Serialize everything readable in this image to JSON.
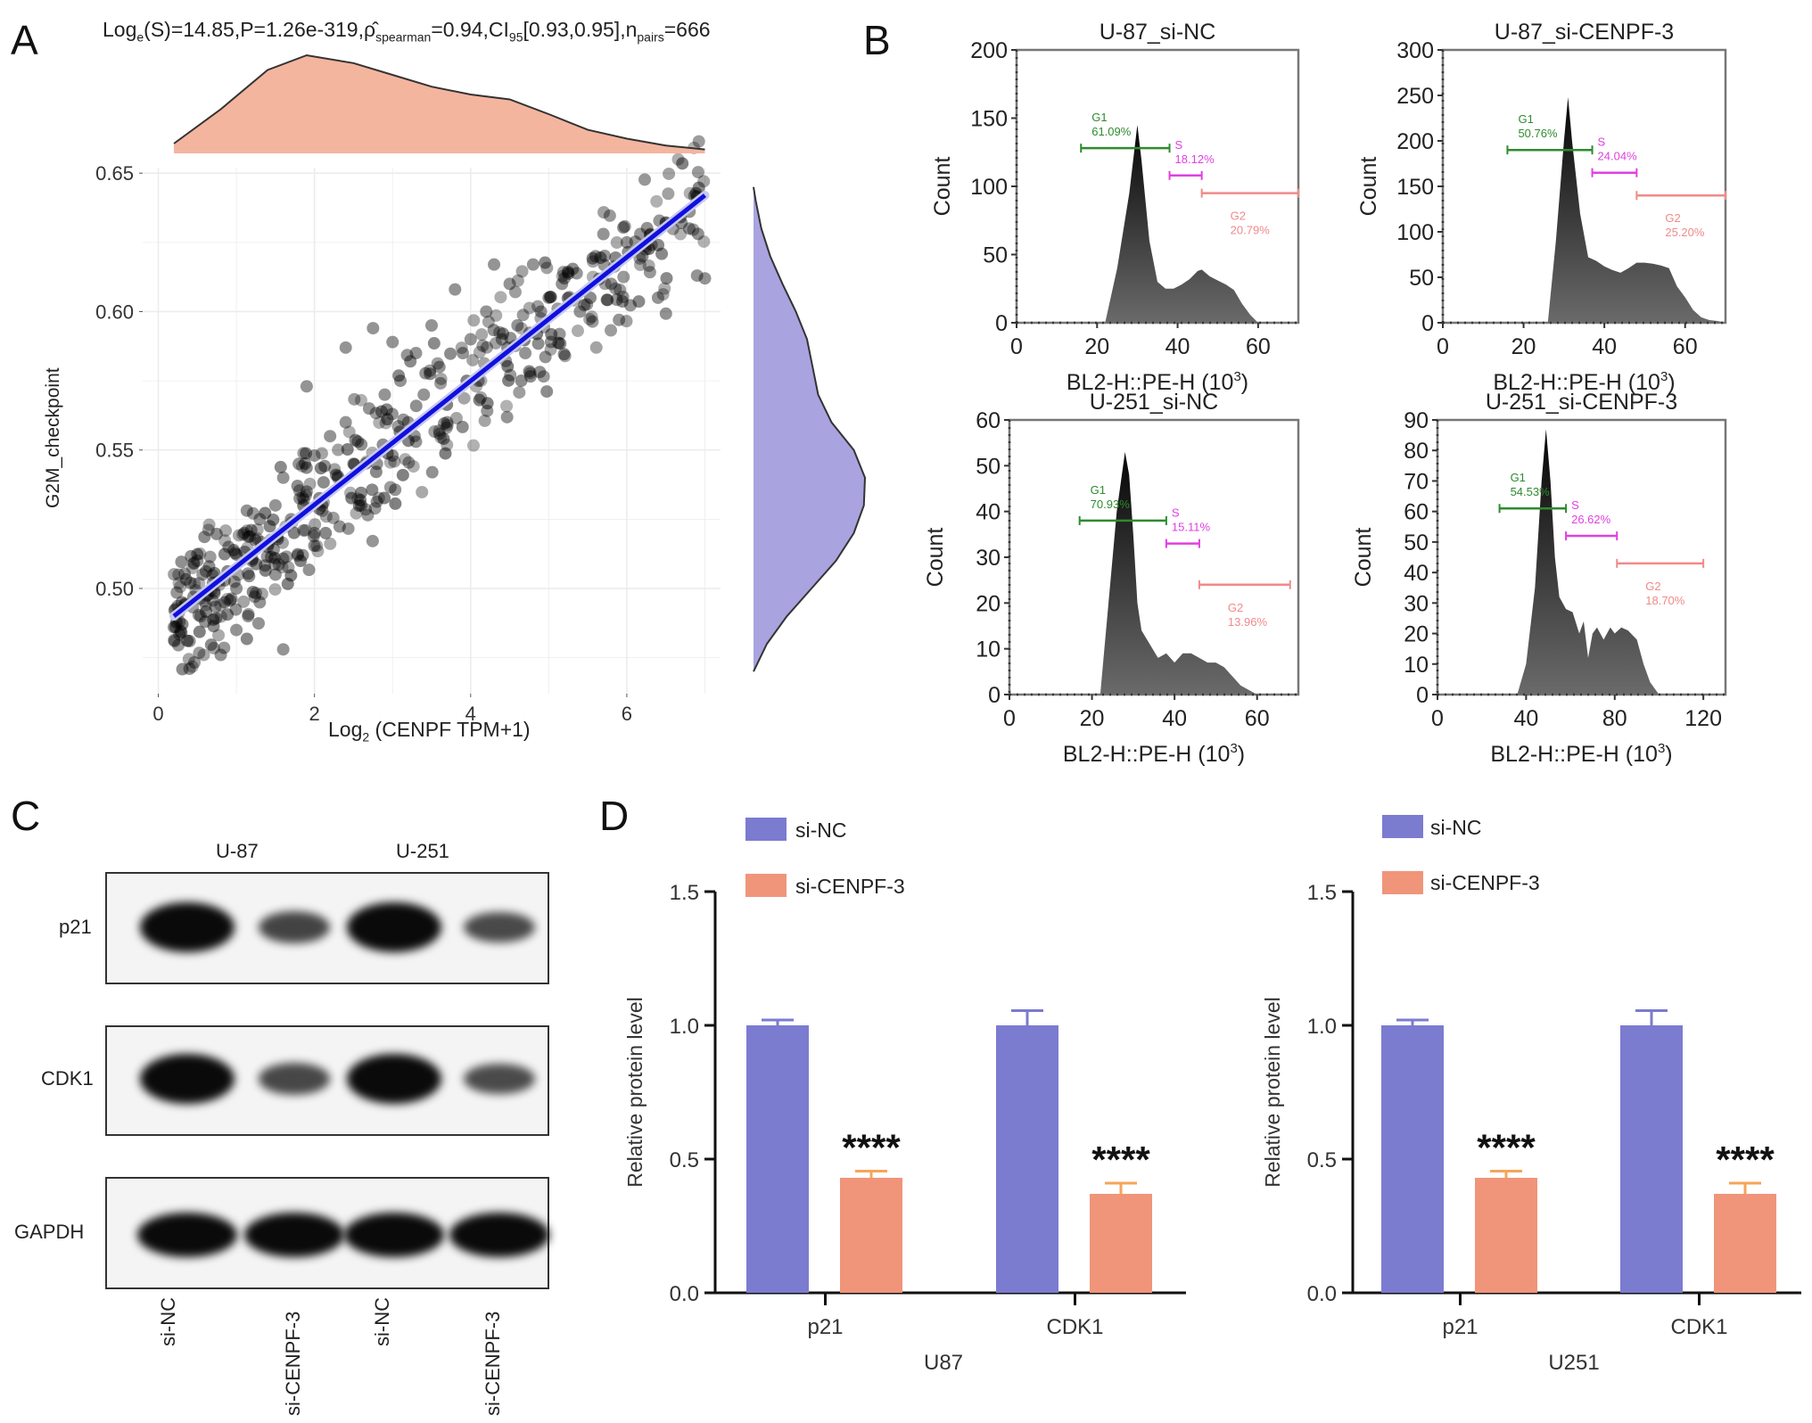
{
  "panels": {
    "A": {
      "letter": "A"
    },
    "B": {
      "letter": "B"
    },
    "C": {
      "letter": "C"
    },
    "D": {
      "letter": "D"
    }
  },
  "panelA": {
    "title_parts": {
      "s": "Log",
      "s_sub": "e",
      "s_rest": "(S)=14.85,P=1.26e-319,",
      "rho": "ρ̂",
      "rho_sub": "spearman",
      "rho_rest": "=0.94,CI",
      "ci_sub": "95",
      "ci_rest": "[0.93,0.95],n",
      "n_sub": "pairs",
      "n_rest": "=666"
    },
    "xlabel_main": "Log",
    "xlabel_sub": "2",
    "xlabel_rest": " (CENPF TPM+1)",
    "ylabel": "G2M_checkpoint"
  },
  "panelC": {
    "groups": [
      "U-87",
      "U-251"
    ],
    "rows": [
      "p21",
      "CDK1",
      "GAPDH"
    ],
    "lanes": [
      "si-NC",
      "si-CENPF-3",
      "si-NC",
      "si-CENPF-3"
    ],
    "band_intensity": {
      "p21": [
        1.0,
        0.45,
        1.0,
        0.4
      ],
      "CDK1": [
        1.0,
        0.42,
        1.0,
        0.38
      ],
      "GAPDH": [
        1.0,
        1.0,
        1.0,
        1.0
      ]
    }
  },
  "colors": {
    "si_nc": "#7b7bd0",
    "si_cenpf": "#f0957a",
    "density_top": "#f4b59f",
    "density_right": "#a9a3e0",
    "regression": "#1010e0",
    "g1": "#2e8b2e",
    "s": "#e040e0",
    "g2": "#f08a8a"
  },
  "chart_data": [
    {
      "id": "scatter",
      "type": "scatter",
      "title": "Loge(S)=14.85, P=1.26e-319, rho_spearman=0.94, CI95[0.93,0.95], n_pairs=666",
      "xlabel": "Log2 (CENPF TPM+1)",
      "ylabel": "G2M_checkpoint",
      "xlim": [
        -0.2,
        7.2
      ],
      "ylim": [
        0.462,
        0.652
      ],
      "xticks": [
        0,
        2,
        4,
        6
      ],
      "yticks": [
        0.5,
        0.55,
        0.6,
        0.65
      ],
      "ytick_labels": [
        "0.50",
        "0.55",
        "0.60",
        "0.65"
      ],
      "grid": true,
      "n_pairs": 666,
      "regression": {
        "x": [
          0.2,
          7.0
        ],
        "y": [
          0.49,
          0.642
        ]
      },
      "points": [
        [
          0.2,
          0.486
        ],
        [
          0.3,
          0.495
        ],
        [
          0.4,
          0.481
        ],
        [
          0.4,
          0.471
        ],
        [
          0.45,
          0.497
        ],
        [
          0.5,
          0.51
        ],
        [
          0.6,
          0.488
        ],
        [
          0.7,
          0.502
        ],
        [
          0.8,
          0.476
        ],
        [
          0.85,
          0.495
        ],
        [
          0.9,
          0.515
        ],
        [
          1.0,
          0.5
        ],
        [
          1.0,
          0.485
        ],
        [
          1.1,
          0.52
        ],
        [
          1.15,
          0.49
        ],
        [
          1.2,
          0.51
        ],
        [
          1.3,
          0.525
        ],
        [
          1.4,
          0.515
        ],
        [
          1.5,
          0.53
        ],
        [
          1.5,
          0.505
        ],
        [
          1.6,
          0.54
        ],
        [
          1.6,
          0.478
        ],
        [
          1.7,
          0.525
        ],
        [
          1.8,
          0.545
        ],
        [
          1.85,
          0.512
        ],
        [
          1.9,
          0.535
        ],
        [
          1.9,
          0.573
        ],
        [
          2.0,
          0.548
        ],
        [
          2.1,
          0.53
        ],
        [
          2.2,
          0.555
        ],
        [
          2.3,
          0.54
        ],
        [
          2.4,
          0.56
        ],
        [
          2.4,
          0.587
        ],
        [
          2.5,
          0.545
        ],
        [
          2.6,
          0.552
        ],
        [
          2.7,
          0.565
        ],
        [
          2.75,
          0.594
        ],
        [
          2.8,
          0.545
        ],
        [
          2.9,
          0.57
        ],
        [
          3.0,
          0.548
        ],
        [
          3.0,
          0.589
        ],
        [
          3.1,
          0.575
        ],
        [
          3.2,
          0.56
        ],
        [
          3.3,
          0.585
        ],
        [
          3.4,
          0.57
        ],
        [
          3.5,
          0.595
        ],
        [
          3.6,
          0.58
        ],
        [
          3.7,
          0.56
        ],
        [
          3.8,
          0.608
        ],
        [
          3.9,
          0.585
        ],
        [
          4.0,
          0.59
        ],
        [
          4.1,
          0.575
        ],
        [
          4.2,
          0.6
        ],
        [
          4.3,
          0.617
        ],
        [
          4.4,
          0.59
        ],
        [
          4.5,
          0.61
        ],
        [
          4.6,
          0.595
        ],
        [
          4.7,
          0.585
        ],
        [
          4.8,
          0.617
        ],
        [
          4.9,
          0.6
        ],
        [
          5.0,
          0.605
        ],
        [
          5.2,
          0.612
        ],
        [
          5.4,
          0.6
        ],
        [
          5.6,
          0.62
        ],
        [
          5.7,
          0.628
        ],
        [
          5.8,
          0.61
        ],
        [
          5.9,
          0.597
        ],
        [
          6.0,
          0.625
        ],
        [
          6.2,
          0.62
        ],
        [
          6.3,
          0.628
        ],
        [
          6.4,
          0.605
        ],
        [
          6.5,
          0.632
        ],
        [
          6.7,
          0.632
        ],
        [
          6.8,
          0.63
        ],
        [
          6.9,
          0.613
        ],
        [
          7.0,
          0.612
        ],
        [
          1.3,
          0.495
        ],
        [
          2.0,
          0.52
        ],
        [
          2.6,
          0.53
        ],
        [
          3.3,
          0.553
        ]
      ]
    },
    {
      "id": "density-top",
      "type": "area",
      "description": "Marginal density of Log2 (CENPF TPM+1)",
      "x": [
        0.2,
        0.8,
        1.4,
        1.9,
        2.5,
        3.0,
        3.5,
        4.0,
        4.5,
        5.0,
        5.5,
        6.0,
        6.5,
        7.0
      ],
      "density": [
        0.1,
        0.45,
        0.85,
        1.0,
        0.92,
        0.8,
        0.68,
        0.6,
        0.55,
        0.4,
        0.24,
        0.15,
        0.08,
        0.04
      ]
    },
    {
      "id": "density-right",
      "type": "area",
      "description": "Marginal density of G2M_checkpoint",
      "y": [
        0.47,
        0.48,
        0.49,
        0.5,
        0.51,
        0.52,
        0.53,
        0.54,
        0.55,
        0.56,
        0.57,
        0.58,
        0.59,
        0.6,
        0.61,
        0.62,
        0.63,
        0.64,
        0.645
      ],
      "density": [
        0.0,
        0.12,
        0.3,
        0.52,
        0.74,
        0.9,
        0.99,
        1.0,
        0.9,
        0.7,
        0.58,
        0.53,
        0.48,
        0.38,
        0.26,
        0.15,
        0.07,
        0.02,
        0.0
      ]
    },
    {
      "id": "flow-u87-sinc",
      "type": "area",
      "title": "U-87_si-NC",
      "xlabel": "BL2-H::PE-H (10^3)",
      "ylabel": "Count",
      "xlim": [
        0,
        70
      ],
      "ylim": [
        0,
        200
      ],
      "xticks": [
        0,
        20,
        40,
        60
      ],
      "yticks": [
        0,
        50,
        100,
        150,
        200
      ],
      "x": [
        22,
        25,
        28,
        30,
        31,
        33,
        35,
        37,
        39,
        41,
        43,
        45,
        46,
        48,
        50,
        52,
        54,
        56,
        58,
        60
      ],
      "y": [
        0,
        40,
        95,
        145,
        120,
        60,
        30,
        25,
        25,
        28,
        32,
        38,
        39,
        34,
        31,
        28,
        24,
        14,
        6,
        0
      ],
      "gates": [
        {
          "name": "G1",
          "pct": "61.09%",
          "range": [
            16,
            38
          ],
          "level": 128,
          "color": "#2e8b2e"
        },
        {
          "name": "S",
          "pct": "18.12%",
          "range": [
            38,
            46
          ],
          "level": 108,
          "color": "#e040e0"
        },
        {
          "name": "G2",
          "pct": "20.79%",
          "range": [
            46,
            70
          ],
          "level": 95,
          "color": "#f08a8a"
        }
      ]
    },
    {
      "id": "flow-u87-sicenpf",
      "type": "area",
      "title": "U-87_si-CENPF-3",
      "xlabel": "BL2-H::PE-H (10^3)",
      "ylabel": "Count",
      "xlim": [
        0,
        70
      ],
      "ylim": [
        0,
        300
      ],
      "xticks": [
        0,
        20,
        40,
        60
      ],
      "yticks": [
        0,
        50,
        100,
        150,
        200,
        250,
        300
      ],
      "x": [
        26,
        28,
        30,
        31,
        32,
        34,
        36,
        38,
        40,
        42,
        44,
        46,
        48,
        50,
        52,
        54,
        56,
        58,
        60,
        62,
        64,
        66,
        68,
        70
      ],
      "y": [
        0,
        90,
        200,
        248,
        200,
        120,
        72,
        68,
        62,
        58,
        55,
        60,
        66,
        66,
        65,
        63,
        60,
        40,
        28,
        14,
        6,
        3,
        2,
        0
      ],
      "gates": [
        {
          "name": "G1",
          "pct": "50.76%",
          "range": [
            16,
            37
          ],
          "level": 190,
          "color": "#2e8b2e"
        },
        {
          "name": "S",
          "pct": "24.04%",
          "range": [
            37,
            48
          ],
          "level": 165,
          "color": "#e040e0"
        },
        {
          "name": "G2",
          "pct": "25.20%",
          "range": [
            48,
            70
          ],
          "level": 140,
          "color": "#f08a8a"
        }
      ]
    },
    {
      "id": "flow-u251-sinc",
      "type": "area",
      "title": "U-251_si-NC",
      "xlabel": "BL2-H::PE-H (10^3)",
      "ylabel": "Count",
      "xlim": [
        0,
        70
      ],
      "ylim": [
        0,
        60
      ],
      "xticks": [
        0,
        20,
        40,
        60
      ],
      "yticks": [
        0,
        10,
        20,
        30,
        40,
        50,
        60
      ],
      "x": [
        22,
        24,
        26,
        28,
        29,
        30,
        31,
        32,
        34,
        36,
        38,
        40,
        42,
        44,
        46,
        48,
        50,
        52,
        54,
        56,
        58,
        60
      ],
      "y": [
        0,
        20,
        40,
        53,
        48,
        35,
        20,
        14,
        11,
        8,
        9,
        7,
        9,
        9,
        8,
        7,
        7,
        6,
        4,
        2,
        1,
        0
      ],
      "gates": [
        {
          "name": "G1",
          "pct": "70.93%",
          "range": [
            17,
            38
          ],
          "level": 38,
          "color": "#2e8b2e"
        },
        {
          "name": "S",
          "pct": "15.11%",
          "range": [
            38,
            46
          ],
          "level": 33,
          "color": "#e040e0"
        },
        {
          "name": "G2",
          "pct": "13.96%",
          "range": [
            46,
            68
          ],
          "level": 24,
          "color": "#f08a8a"
        }
      ]
    },
    {
      "id": "flow-u251-sicenpf",
      "type": "area",
      "title": "U-251_si-CENPF-3",
      "xlabel": "BL2-H::PE-H (10^3)",
      "ylabel": "Count",
      "xlim": [
        0,
        130
      ],
      "ylim": [
        0,
        90
      ],
      "xticks": [
        0,
        40,
        80,
        120
      ],
      "yticks": [
        0,
        10,
        20,
        30,
        40,
        50,
        60,
        70,
        80,
        90
      ],
      "x": [
        36,
        40,
        44,
        47,
        49,
        51,
        53,
        55,
        58,
        61,
        64,
        66,
        68,
        70,
        72,
        75,
        78,
        80,
        83,
        86,
        90,
        93,
        96,
        100
      ],
      "y": [
        0,
        10,
        35,
        70,
        87,
        70,
        45,
        32,
        28,
        27,
        20,
        24,
        12,
        20,
        22,
        18,
        22,
        20,
        22,
        21,
        18,
        10,
        4,
        0
      ],
      "gates": [
        {
          "name": "G1",
          "pct": "54.53%",
          "range": [
            28,
            58
          ],
          "level": 61,
          "color": "#2e8b2e"
        },
        {
          "name": "S",
          "pct": "26.62%",
          "range": [
            58,
            81
          ],
          "level": 52,
          "color": "#e040e0"
        },
        {
          "name": "G2",
          "pct": "18.70%",
          "range": [
            81,
            120
          ],
          "level": 43,
          "color": "#f08a8a"
        }
      ]
    },
    {
      "id": "bar-u87",
      "type": "bar",
      "xlabel": "U87",
      "ylabel": "Relative protein level",
      "ylim": [
        0,
        1.5
      ],
      "yticks": [
        0.0,
        0.5,
        1.0,
        1.5
      ],
      "ytick_labels": [
        "0.0",
        "0.5",
        "1.0",
        "1.5"
      ],
      "categories": [
        "p21",
        "CDK1"
      ],
      "series": [
        {
          "name": "si-NC",
          "values": [
            1.0,
            1.0
          ],
          "errors": [
            0.02,
            0.055
          ]
        },
        {
          "name": "si-CENPF-3",
          "values": [
            0.43,
            0.37
          ],
          "errors": [
            0.025,
            0.04
          ]
        }
      ],
      "annotations": [
        "****",
        "****"
      ]
    },
    {
      "id": "bar-u251",
      "type": "bar",
      "xlabel": "U251",
      "ylabel": "Relative protein level",
      "ylim": [
        0,
        1.5
      ],
      "yticks": [
        0.0,
        0.5,
        1.0,
        1.5
      ],
      "ytick_labels": [
        "0.0",
        "0.5",
        "1.0",
        "1.5"
      ],
      "categories": [
        "p21",
        "CDK1"
      ],
      "series": [
        {
          "name": "si-NC",
          "values": [
            1.0,
            1.0
          ],
          "errors": [
            0.02,
            0.055
          ]
        },
        {
          "name": "si-CENPF-3",
          "values": [
            0.43,
            0.37
          ],
          "errors": [
            0.025,
            0.04
          ]
        }
      ],
      "annotations": [
        "****",
        "****"
      ]
    }
  ]
}
